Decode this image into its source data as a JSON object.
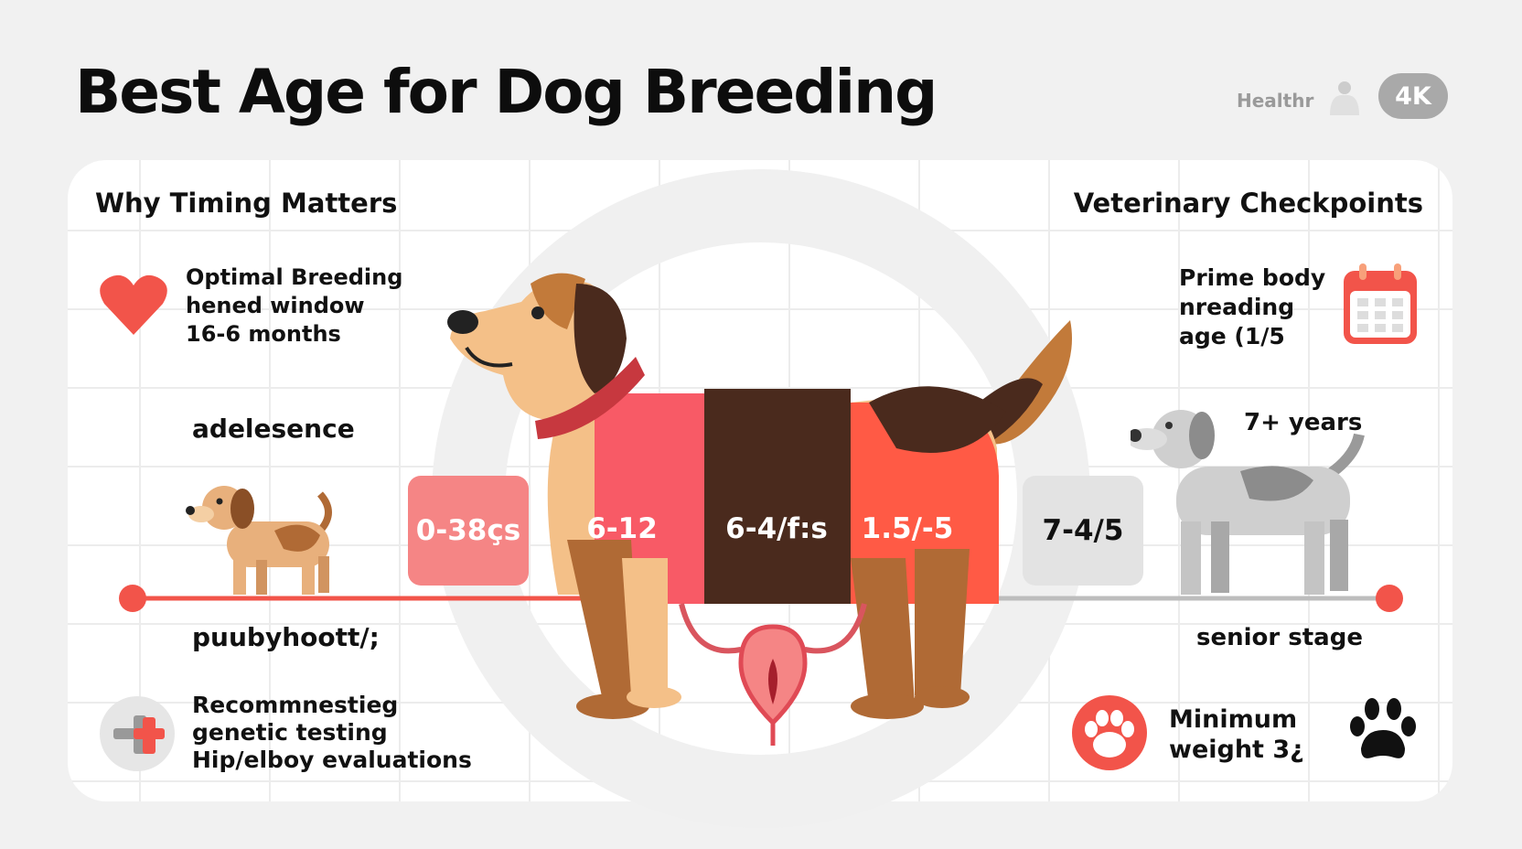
{
  "header": {
    "title": "Best Age for Dog Breeding",
    "brand": "Healthr",
    "badge": "4K"
  },
  "left": {
    "heading": "Why Timing Matters",
    "optimal": [
      "Optimal Breeding",
      "hened window",
      "16-6 months"
    ],
    "stage_top": "adelesence",
    "stage_bottom": "puubyhoott/;",
    "recommend": [
      "Recommnestieg",
      "genetic testing",
      "Hip/elboy evaluations"
    ]
  },
  "right": {
    "heading": "Veterinary Checkpoints",
    "prime": [
      "Prime body",
      "nreading",
      "age (1/5"
    ],
    "senior_age": "7+ years",
    "stage_bottom": "senior stage",
    "minimum": [
      "Minimum",
      "weight 3¿"
    ]
  },
  "timeline": {
    "segments": [
      "0-38çs",
      "6-12",
      "6-4/f:s",
      "1.5/-5",
      "7-4/5"
    ]
  },
  "colors": {
    "accent": "#f2544a",
    "pink": "#f58585",
    "brown": "#4a2a1d",
    "coral": "#ff5a45",
    "gray": "#e3e3e3"
  },
  "icons": [
    "heart-icon",
    "calendar-icon",
    "medical-cross-icon",
    "paw-icon",
    "uterus-icon",
    "person-icon"
  ]
}
